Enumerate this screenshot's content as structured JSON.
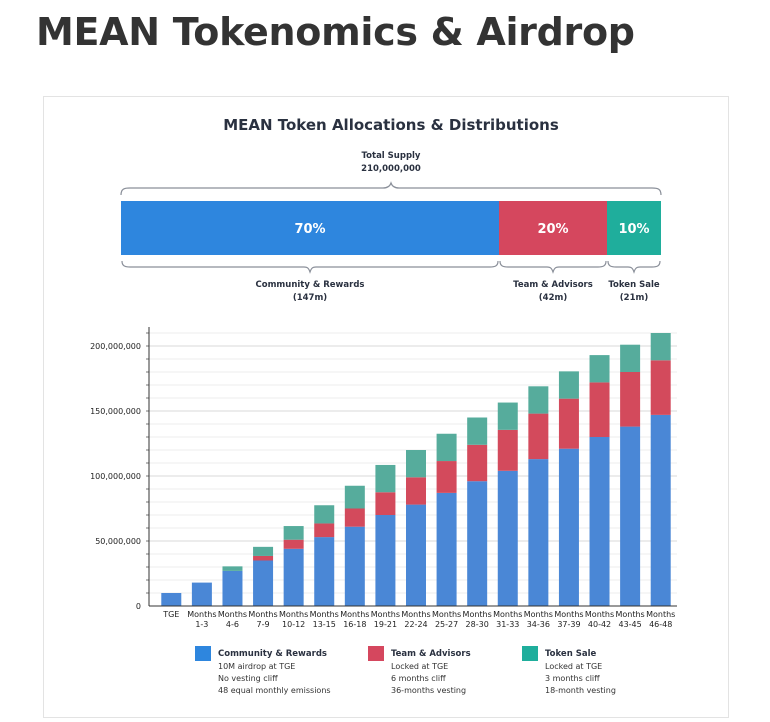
{
  "page": {
    "heading": "MEAN Tokenomics & Airdrop"
  },
  "colors": {
    "community": "#2e86de",
    "team": "#d5475e",
    "sale": "#1fae9c",
    "grid": "#e6e6e6",
    "axis": "#333333"
  },
  "allocation": {
    "title": "MEAN Token Allocations & Distributions",
    "total_label": "Total Supply",
    "total_value": "210,000,000",
    "segments": [
      {
        "pct_label": "70%",
        "pct": 70,
        "name": "Community & Rewards",
        "amount": "(147m)",
        "color": "#2e86de"
      },
      {
        "pct_label": "20%",
        "pct": 20,
        "name": "Team & Advisors",
        "amount": "(42m)",
        "color": "#d5475e"
      },
      {
        "pct_label": "10%",
        "pct": 10,
        "name": "Token Sale",
        "amount": "(21m)",
        "color": "#1fae9c"
      }
    ]
  },
  "chart_data": {
    "type": "bar",
    "stacked": true,
    "title": "",
    "xlabel": "",
    "ylabel": "",
    "ylim": [
      0,
      210000000
    ],
    "y_ticks": [
      0,
      50000000,
      100000000,
      150000000,
      200000000
    ],
    "y_tick_labels": [
      "0",
      "50,000,000",
      "100,000,000",
      "150,000,000",
      "200,000,000"
    ],
    "categories": [
      [
        "TGE"
      ],
      [
        "Months",
        "1-3"
      ],
      [
        "Months",
        "4-6"
      ],
      [
        "Months",
        "7-9"
      ],
      [
        "Months",
        "10-12"
      ],
      [
        "Months",
        "13-15"
      ],
      [
        "Months",
        "16-18"
      ],
      [
        "Months",
        "19-21"
      ],
      [
        "Months",
        "22-24"
      ],
      [
        "Months",
        "25-27"
      ],
      [
        "Months",
        "28-30"
      ],
      [
        "Months",
        "31-33"
      ],
      [
        "Months",
        "34-36"
      ],
      [
        "Months",
        "37-39"
      ],
      [
        "Months",
        "40-42"
      ],
      [
        "Months",
        "43-45"
      ],
      [
        "Months",
        "46-48"
      ]
    ],
    "series": [
      {
        "name": "Community & Rewards",
        "color": "#4a87d6",
        "values": [
          10000000,
          18000000,
          27000000,
          35000000,
          44000000,
          53000000,
          61000000,
          70000000,
          78000000,
          87000000,
          96000000,
          104000000,
          113000000,
          121000000,
          130000000,
          138000000,
          147000000
        ]
      },
      {
        "name": "Team & Advisors",
        "color": "#d34a5c",
        "values": [
          0,
          0,
          0,
          3500000,
          7000000,
          10500000,
          14000000,
          17500000,
          21000000,
          24500000,
          28000000,
          31500000,
          35000000,
          38500000,
          42000000,
          42000000,
          42000000
        ]
      },
      {
        "name": "Token Sale",
        "color": "#56ac9c",
        "values": [
          0,
          0,
          3500000,
          7000000,
          10500000,
          14000000,
          17500000,
          21000000,
          21000000,
          21000000,
          21000000,
          21000000,
          21000000,
          21000000,
          21000000,
          21000000,
          21000000
        ]
      }
    ],
    "legend": [
      {
        "name": "Community & Rewards",
        "color": "#2e86de",
        "lines": [
          "10M airdrop at TGE",
          "No vesting cliff",
          "48 equal monthly emissions"
        ]
      },
      {
        "name": "Team & Advisors",
        "color": "#d5475e",
        "lines": [
          "Locked at TGE",
          "6 months cliff",
          "36-months vesting"
        ]
      },
      {
        "name": "Token Sale",
        "color": "#1fae9c",
        "lines": [
          "Locked at TGE",
          "3 months cliff",
          "18-month vesting"
        ]
      }
    ]
  }
}
